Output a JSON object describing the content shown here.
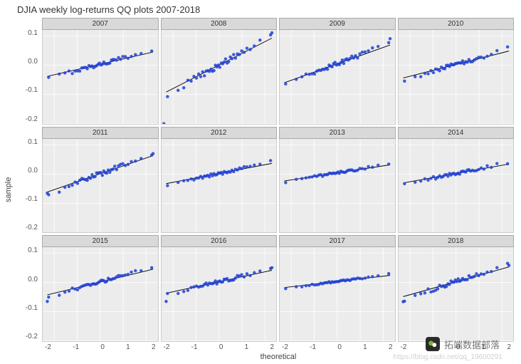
{
  "title": "DJIA weekly log-returns QQ plots 2007-2018",
  "x_axis_label": "theoretical",
  "y_axis_label": "sample",
  "watermark_text": "拓端数据部落",
  "watermark_url": "https://blog.csdn.net/qq_19600291",
  "layout": {
    "rows": 3,
    "cols": 4
  },
  "xlim": [
    -2.5,
    2.5
  ],
  "ylim": [
    -0.2,
    0.12
  ],
  "x_ticks": [
    -2,
    -1,
    0,
    1,
    2
  ],
  "y_ticks": [
    -0.2,
    -0.1,
    0.0,
    0.1
  ],
  "grid_color": "#ffffff",
  "panel_bg": "#ececec",
  "strip_bg": "#d9d9d9",
  "point_color": "#1f3fd6",
  "point_alpha": 0.85,
  "point_size": 2.2,
  "line_color": "#000000",
  "line_width": 0.9,
  "panels": [
    {
      "year": "2007",
      "slope": 0.018,
      "intercept": 0.003,
      "n": 40,
      "noise": 0.007,
      "outliers": []
    },
    {
      "year": "2008",
      "slope": 0.04,
      "intercept": 0.0,
      "n": 40,
      "noise": 0.01,
      "outliers": [
        [
          -2.4,
          -0.2
        ],
        [
          2.3,
          0.11
        ]
      ]
    },
    {
      "year": "2009",
      "slope": 0.028,
      "intercept": 0.004,
      "n": 40,
      "noise": 0.008,
      "outliers": [
        [
          2.3,
          0.09
        ]
      ]
    },
    {
      "year": "2010",
      "slope": 0.02,
      "intercept": 0.002,
      "n": 40,
      "noise": 0.007,
      "outliers": []
    },
    {
      "year": "2011",
      "slope": 0.027,
      "intercept": 0.001,
      "n": 40,
      "noise": 0.008,
      "outliers": [
        [
          -2.3,
          -0.065
        ],
        [
          2.3,
          0.07
        ]
      ]
    },
    {
      "year": "2012",
      "slope": 0.015,
      "intercept": 0.002,
      "n": 40,
      "noise": 0.005,
      "outliers": []
    },
    {
      "year": "2013",
      "slope": 0.012,
      "intercept": 0.004,
      "n": 40,
      "noise": 0.004,
      "outliers": []
    },
    {
      "year": "2014",
      "slope": 0.014,
      "intercept": 0.002,
      "n": 40,
      "noise": 0.005,
      "outliers": []
    },
    {
      "year": "2015",
      "slope": 0.019,
      "intercept": 0.001,
      "n": 40,
      "noise": 0.006,
      "outliers": [
        [
          -2.3,
          -0.065
        ]
      ]
    },
    {
      "year": "2016",
      "slope": 0.017,
      "intercept": 0.002,
      "n": 40,
      "noise": 0.006,
      "outliers": [
        [
          -2.3,
          -0.065
        ],
        [
          2.3,
          0.05
        ]
      ]
    },
    {
      "year": "2017",
      "slope": 0.009,
      "intercept": 0.003,
      "n": 40,
      "noise": 0.003,
      "outliers": []
    },
    {
      "year": "2018",
      "slope": 0.022,
      "intercept": 0.002,
      "n": 40,
      "noise": 0.008,
      "outliers": [
        [
          -2.3,
          -0.066
        ],
        [
          2.3,
          0.058
        ]
      ]
    }
  ]
}
